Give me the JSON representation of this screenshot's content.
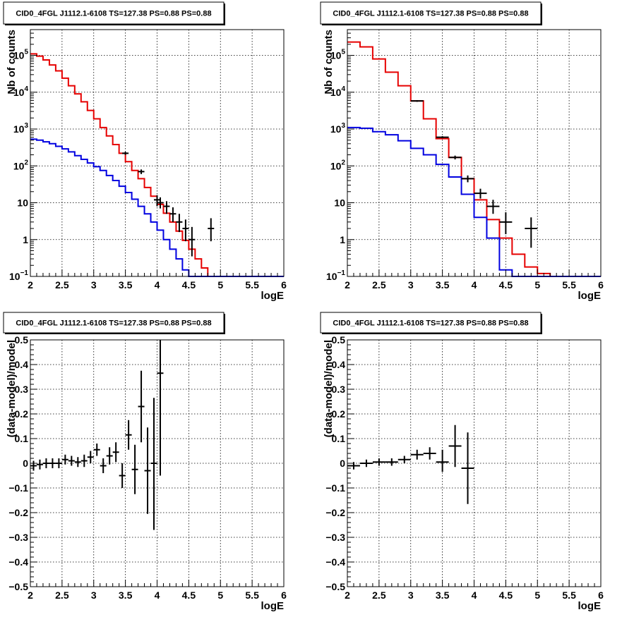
{
  "chart_data": [
    {
      "type": "line",
      "title": "CID0_4FGL J1112.1-6108 TS=127.38 PS=0.88 PS=0.88",
      "xlabel": "logE",
      "ylabel": "Nb of counts",
      "xlim": [
        2,
        6
      ],
      "ylim": [
        0.1,
        500000
      ],
      "yscale": "log",
      "grid": true,
      "x_ticks": [
        "2",
        "2.5",
        "3",
        "3.5",
        "4",
        "4.5",
        "5",
        "5.5",
        "6"
      ],
      "y_ticks": [
        {
          "value": 0.1,
          "label": "10",
          "sup": "−1"
        },
        {
          "value": 1,
          "label": "1",
          "sup": ""
        },
        {
          "value": 10,
          "label": "10",
          "sup": ""
        },
        {
          "value": 100,
          "label": "10",
          "sup": "2"
        },
        {
          "value": 1000,
          "label": "10",
          "sup": "3"
        },
        {
          "value": 10000,
          "label": "10",
          "sup": "4"
        },
        {
          "value": 100000,
          "label": "10",
          "sup": "5"
        }
      ],
      "series": [
        {
          "color": "#e60000",
          "style": "step",
          "edges": [
            2.0,
            2.1,
            2.2,
            2.3,
            2.4,
            2.5,
            2.6,
            2.7,
            2.8,
            2.9,
            3.0,
            3.1,
            3.2,
            3.3,
            3.4,
            3.5,
            3.6,
            3.7,
            3.8,
            3.9,
            4.0,
            4.1,
            4.2,
            4.3,
            4.4,
            4.5,
            4.6,
            4.7,
            4.8,
            4.9,
            5.0,
            5.1,
            5.2,
            5.3,
            5.4,
            5.5,
            5.6,
            5.7,
            5.8,
            5.9,
            6.0
          ],
          "values": [
            110000,
            95000,
            75000,
            55000,
            38000,
            24000,
            15000,
            9000,
            5500,
            3200,
            1900,
            1100,
            650,
            380,
            220,
            130,
            75,
            45,
            26,
            15,
            9,
            5.2,
            3,
            1.7,
            0.95,
            0.55,
            0.3,
            0.17,
            0.1,
            0.1,
            0.1,
            0.1,
            0.1,
            0.1,
            0.1,
            0.1,
            0.1,
            0.1,
            0.1,
            0.1
          ]
        },
        {
          "color": "#0000e0",
          "style": "step",
          "edges": [
            2.0,
            2.1,
            2.2,
            2.3,
            2.4,
            2.5,
            2.6,
            2.7,
            2.8,
            2.9,
            3.0,
            3.1,
            3.2,
            3.3,
            3.4,
            3.5,
            3.6,
            3.7,
            3.8,
            3.9,
            4.0,
            4.1,
            4.2,
            4.3,
            4.4,
            4.5,
            4.6,
            4.7,
            4.8,
            4.9,
            5.0,
            5.1,
            5.2,
            5.3,
            5.4,
            5.5,
            5.6,
            5.7,
            5.8,
            5.9,
            6.0
          ],
          "values": [
            530,
            500,
            450,
            400,
            340,
            290,
            240,
            190,
            150,
            120,
            95,
            75,
            55,
            40,
            28,
            19,
            12.5,
            8,
            5,
            3,
            1.8,
            1,
            0.55,
            0.3,
            0.15,
            0.1,
            0.1,
            0.1,
            0.1,
            0.1,
            0.1,
            0.1,
            0.1,
            0.1,
            0.1,
            0.1,
            0.1,
            0.1,
            0.1,
            0.1
          ]
        },
        {
          "color": "#000000",
          "style": "errorbar",
          "points": [
            {
              "x": 3.5,
              "y": 220,
              "xerr": 0.05,
              "ylo": 200,
              "yhi": 240
            },
            {
              "x": 3.75,
              "y": 70,
              "xerr": 0.05,
              "ylo": 60,
              "yhi": 80
            },
            {
              "x": 4.0,
              "y": 12,
              "xerr": 0.05,
              "ylo": 8,
              "yhi": 16
            },
            {
              "x": 4.05,
              "y": 10,
              "xerr": 0.05,
              "ylo": 7,
              "yhi": 14
            },
            {
              "x": 4.15,
              "y": 8,
              "xerr": 0.05,
              "ylo": 5,
              "yhi": 11
            },
            {
              "x": 4.25,
              "y": 5,
              "xerr": 0.05,
              "ylo": 3,
              "yhi": 7.5
            },
            {
              "x": 4.35,
              "y": 3,
              "xerr": 0.05,
              "ylo": 1.6,
              "yhi": 5
            },
            {
              "x": 4.45,
              "y": 2,
              "xerr": 0.05,
              "ylo": 0.9,
              "yhi": 3.5
            },
            {
              "x": 4.55,
              "y": 1,
              "xerr": 0.05,
              "ylo": 0.35,
              "yhi": 2.2
            },
            {
              "x": 4.85,
              "y": 2,
              "xerr": 0.05,
              "ylo": 0.9,
              "yhi": 3.8
            }
          ]
        }
      ]
    },
    {
      "type": "line",
      "title": "CID0_4FGL J1112.1-6108 TS=127.38 PS=0.88 PS=0.88",
      "xlabel": "logE",
      "ylabel": "Nb of counts",
      "xlim": [
        2,
        6
      ],
      "ylim": [
        0.1,
        500000
      ],
      "yscale": "log",
      "grid": true,
      "x_ticks": [
        "2",
        "2.5",
        "3",
        "3.5",
        "4",
        "4.5",
        "5",
        "5.5",
        "6"
      ],
      "y_ticks": [
        {
          "value": 0.1,
          "label": "10",
          "sup": "−1"
        },
        {
          "value": 1,
          "label": "1",
          "sup": ""
        },
        {
          "value": 10,
          "label": "10",
          "sup": ""
        },
        {
          "value": 100,
          "label": "10",
          "sup": "2"
        },
        {
          "value": 1000,
          "label": "10",
          "sup": "3"
        },
        {
          "value": 10000,
          "label": "10",
          "sup": "4"
        },
        {
          "value": 100000,
          "label": "10",
          "sup": "5"
        }
      ],
      "series": [
        {
          "color": "#e60000",
          "style": "step",
          "edges": [
            2.0,
            2.2,
            2.4,
            2.6,
            2.8,
            3.0,
            3.2,
            3.4,
            3.6,
            3.8,
            4.0,
            4.2,
            4.4,
            4.6,
            4.8,
            5.0,
            5.2,
            5.4,
            5.6,
            5.8,
            6.0
          ],
          "values": [
            230000,
            170000,
            80000,
            35000,
            15000,
            5800,
            1900,
            550,
            170,
            45,
            12,
            3.5,
            1.1,
            0.4,
            0.18,
            0.12,
            0.1,
            0.1,
            0.1,
            0.1
          ]
        },
        {
          "color": "#0000e0",
          "style": "step",
          "edges": [
            2.0,
            2.2,
            2.4,
            2.6,
            2.8,
            3.0,
            3.2,
            3.4,
            3.6,
            3.8,
            4.0,
            4.2,
            4.4,
            4.6,
            4.8,
            5.0,
            5.2,
            5.4,
            5.6,
            5.8,
            6.0
          ],
          "values": [
            1100,
            1050,
            850,
            700,
            480,
            300,
            200,
            110,
            50,
            17,
            4,
            1.1,
            0.15,
            0.1,
            0.1,
            0.1,
            0.1,
            0.1,
            0.1,
            0.1
          ]
        },
        {
          "color": "#000000",
          "style": "errorbar",
          "points": [
            {
              "x": 3.1,
              "y": 5800,
              "xerr": 0.1,
              "ylo": 5500,
              "yhi": 6100
            },
            {
              "x": 3.5,
              "y": 600,
              "xerr": 0.1,
              "ylo": 560,
              "yhi": 640
            },
            {
              "x": 3.7,
              "y": 170,
              "xerr": 0.1,
              "ylo": 150,
              "yhi": 190
            },
            {
              "x": 3.9,
              "y": 45,
              "xerr": 0.1,
              "ylo": 36,
              "yhi": 55
            },
            {
              "x": 4.1,
              "y": 18,
              "xerr": 0.1,
              "ylo": 13,
              "yhi": 24
            },
            {
              "x": 4.3,
              "y": 8,
              "xerr": 0.1,
              "ylo": 5,
              "yhi": 12
            },
            {
              "x": 4.5,
              "y": 3,
              "xerr": 0.1,
              "ylo": 1.4,
              "yhi": 5.5
            },
            {
              "x": 4.9,
              "y": 2,
              "xerr": 0.1,
              "ylo": 0.6,
              "yhi": 4
            }
          ]
        }
      ]
    },
    {
      "type": "scatter",
      "title": "CID0_4FGL J1112.1-6108 TS=127.38 PS=0.88 PS=0.88",
      "xlabel": "logE",
      "ylabel": "(data-model)/model",
      "xlim": [
        2,
        6
      ],
      "ylim": [
        -0.5,
        0.5
      ],
      "yscale": "linear",
      "grid": true,
      "x_ticks": [
        "2",
        "2.5",
        "3",
        "3.5",
        "4",
        "4.5",
        "5",
        "5.5",
        "6"
      ],
      "y_ticks": [
        {
          "value": -0.5,
          "label": "−0.5",
          "sup": ""
        },
        {
          "value": -0.4,
          "label": "−0.4",
          "sup": ""
        },
        {
          "value": -0.3,
          "label": "−0.3",
          "sup": ""
        },
        {
          "value": -0.2,
          "label": "−0.2",
          "sup": ""
        },
        {
          "value": -0.1,
          "label": "−0.1",
          "sup": ""
        },
        {
          "value": 0,
          "label": "0",
          "sup": ""
        },
        {
          "value": 0.1,
          "label": "0.1",
          "sup": ""
        },
        {
          "value": 0.2,
          "label": "0.2",
          "sup": ""
        },
        {
          "value": 0.3,
          "label": "0.3",
          "sup": ""
        },
        {
          "value": 0.4,
          "label": "0.4",
          "sup": ""
        },
        {
          "value": 0.5,
          "label": "0.5",
          "sup": ""
        }
      ],
      "series": [
        {
          "color": "#000000",
          "style": "errorbar",
          "points": [
            {
              "x": 2.05,
              "y": -0.01,
              "xerr": 0.05,
              "ylo": -0.03,
              "yhi": 0.01
            },
            {
              "x": 2.15,
              "y": -0.005,
              "xerr": 0.05,
              "ylo": -0.025,
              "yhi": 0.015
            },
            {
              "x": 2.25,
              "y": 0.0,
              "xerr": 0.05,
              "ylo": -0.02,
              "yhi": 0.02
            },
            {
              "x": 2.35,
              "y": 0.0,
              "xerr": 0.05,
              "ylo": -0.02,
              "yhi": 0.02
            },
            {
              "x": 2.45,
              "y": 0.0,
              "xerr": 0.05,
              "ylo": -0.02,
              "yhi": 0.02
            },
            {
              "x": 2.55,
              "y": 0.015,
              "xerr": 0.05,
              "ylo": -0.005,
              "yhi": 0.035
            },
            {
              "x": 2.65,
              "y": 0.01,
              "xerr": 0.05,
              "ylo": -0.01,
              "yhi": 0.03
            },
            {
              "x": 2.75,
              "y": 0.005,
              "xerr": 0.05,
              "ylo": -0.015,
              "yhi": 0.025
            },
            {
              "x": 2.85,
              "y": 0.01,
              "xerr": 0.05,
              "ylo": -0.015,
              "yhi": 0.035
            },
            {
              "x": 2.95,
              "y": 0.025,
              "xerr": 0.05,
              "ylo": 0.0,
              "yhi": 0.05
            },
            {
              "x": 3.05,
              "y": 0.055,
              "xerr": 0.05,
              "ylo": 0.03,
              "yhi": 0.08
            },
            {
              "x": 3.15,
              "y": -0.01,
              "xerr": 0.05,
              "ylo": -0.04,
              "yhi": 0.02
            },
            {
              "x": 3.25,
              "y": 0.03,
              "xerr": 0.05,
              "ylo": -0.005,
              "yhi": 0.065
            },
            {
              "x": 3.35,
              "y": 0.045,
              "xerr": 0.05,
              "ylo": 0.005,
              "yhi": 0.085
            },
            {
              "x": 3.45,
              "y": -0.05,
              "xerr": 0.05,
              "ylo": -0.1,
              "yhi": 0.0
            },
            {
              "x": 3.55,
              "y": 0.115,
              "xerr": 0.05,
              "ylo": 0.055,
              "yhi": 0.175
            },
            {
              "x": 3.65,
              "y": -0.025,
              "xerr": 0.05,
              "ylo": -0.125,
              "yhi": 0.075
            },
            {
              "x": 3.75,
              "y": 0.23,
              "xerr": 0.05,
              "ylo": 0.085,
              "yhi": 0.375
            },
            {
              "x": 3.85,
              "y": -0.03,
              "xerr": 0.05,
              "ylo": -0.205,
              "yhi": 0.145
            },
            {
              "x": 3.95,
              "y": 0.0,
              "xerr": 0.05,
              "ylo": -0.27,
              "yhi": 0.265
            },
            {
              "x": 4.05,
              "y": 0.365,
              "xerr": 0.05,
              "ylo": -0.05,
              "yhi": 0.5
            }
          ]
        }
      ]
    },
    {
      "type": "scatter",
      "title": "CID0_4FGL J1112.1-6108 TS=127.38 PS=0.88 PS=0.88",
      "xlabel": "logE",
      "ylabel": "(data-model)/model",
      "xlim": [
        2,
        6
      ],
      "ylim": [
        -0.5,
        0.5
      ],
      "yscale": "linear",
      "grid": true,
      "x_ticks": [
        "2",
        "2.5",
        "3",
        "3.5",
        "4",
        "4.5",
        "5",
        "5.5",
        "6"
      ],
      "y_ticks": [
        {
          "value": -0.5,
          "label": "−0.5",
          "sup": ""
        },
        {
          "value": -0.4,
          "label": "−0.4",
          "sup": ""
        },
        {
          "value": -0.3,
          "label": "−0.3",
          "sup": ""
        },
        {
          "value": -0.2,
          "label": "−0.2",
          "sup": ""
        },
        {
          "value": -0.1,
          "label": "−0.1",
          "sup": ""
        },
        {
          "value": 0,
          "label": "0",
          "sup": ""
        },
        {
          "value": 0.1,
          "label": "0.1",
          "sup": ""
        },
        {
          "value": 0.2,
          "label": "0.2",
          "sup": ""
        },
        {
          "value": 0.3,
          "label": "0.3",
          "sup": ""
        },
        {
          "value": 0.4,
          "label": "0.4",
          "sup": ""
        },
        {
          "value": 0.5,
          "label": "0.5",
          "sup": ""
        }
      ],
      "series": [
        {
          "color": "#000000",
          "style": "errorbar",
          "points": [
            {
              "x": 2.1,
              "y": -0.01,
              "xerr": 0.1,
              "ylo": -0.025,
              "yhi": 0.005
            },
            {
              "x": 2.3,
              "y": 0.0,
              "xerr": 0.1,
              "ylo": -0.015,
              "yhi": 0.015
            },
            {
              "x": 2.5,
              "y": 0.005,
              "xerr": 0.1,
              "ylo": -0.01,
              "yhi": 0.02
            },
            {
              "x": 2.7,
              "y": 0.005,
              "xerr": 0.1,
              "ylo": -0.01,
              "yhi": 0.02
            },
            {
              "x": 2.9,
              "y": 0.015,
              "xerr": 0.1,
              "ylo": 0.0,
              "yhi": 0.03
            },
            {
              "x": 3.1,
              "y": 0.035,
              "xerr": 0.1,
              "ylo": 0.015,
              "yhi": 0.055
            },
            {
              "x": 3.3,
              "y": 0.04,
              "xerr": 0.1,
              "ylo": 0.015,
              "yhi": 0.065
            },
            {
              "x": 3.5,
              "y": 0.005,
              "xerr": 0.1,
              "ylo": -0.035,
              "yhi": 0.055
            },
            {
              "x": 3.7,
              "y": 0.07,
              "xerr": 0.1,
              "ylo": -0.015,
              "yhi": 0.155
            },
            {
              "x": 3.9,
              "y": -0.02,
              "xerr": 0.1,
              "ylo": -0.165,
              "yhi": 0.125
            }
          ]
        }
      ]
    }
  ]
}
